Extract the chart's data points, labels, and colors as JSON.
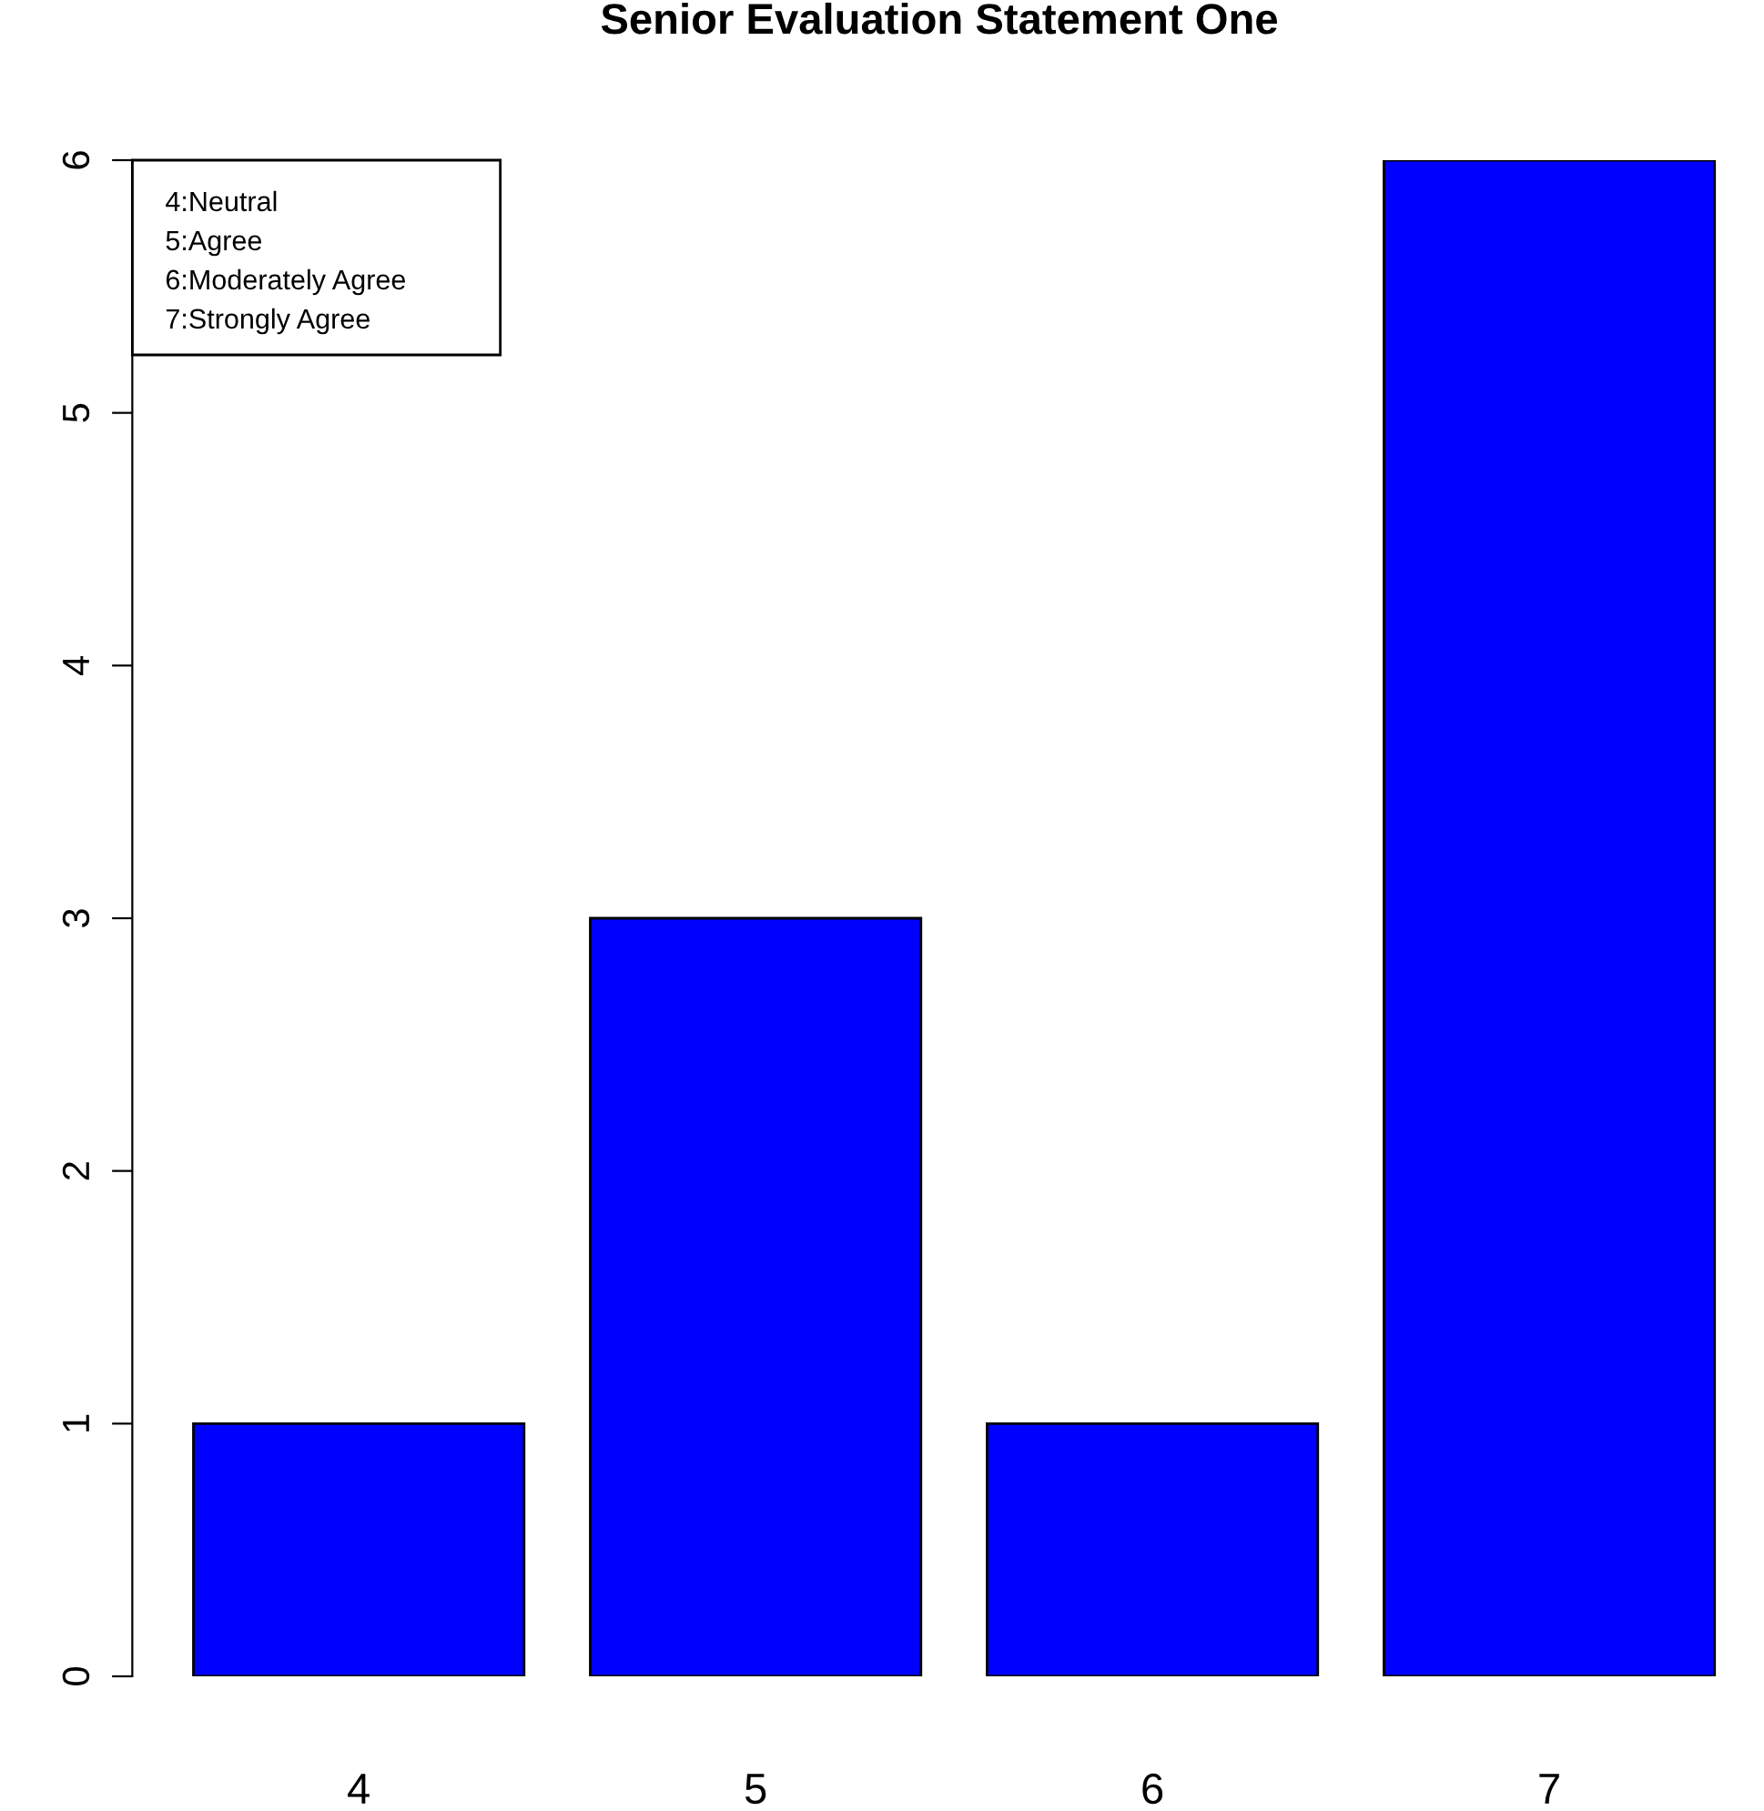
{
  "chart_data": {
    "type": "bar",
    "title": "Senior Evaluation Statement One",
    "categories": [
      "4",
      "5",
      "6",
      "7"
    ],
    "values": [
      1,
      3,
      1,
      6
    ],
    "color": "#0000ff",
    "ylim": [
      0,
      6
    ],
    "yticks": [
      0,
      1,
      2,
      3,
      4,
      5,
      6
    ],
    "grid": false,
    "legend": false,
    "annotations": [
      "4:Neutral",
      "5:Agree",
      "6:Moderately Agree",
      "7:Strongly Agree"
    ]
  }
}
